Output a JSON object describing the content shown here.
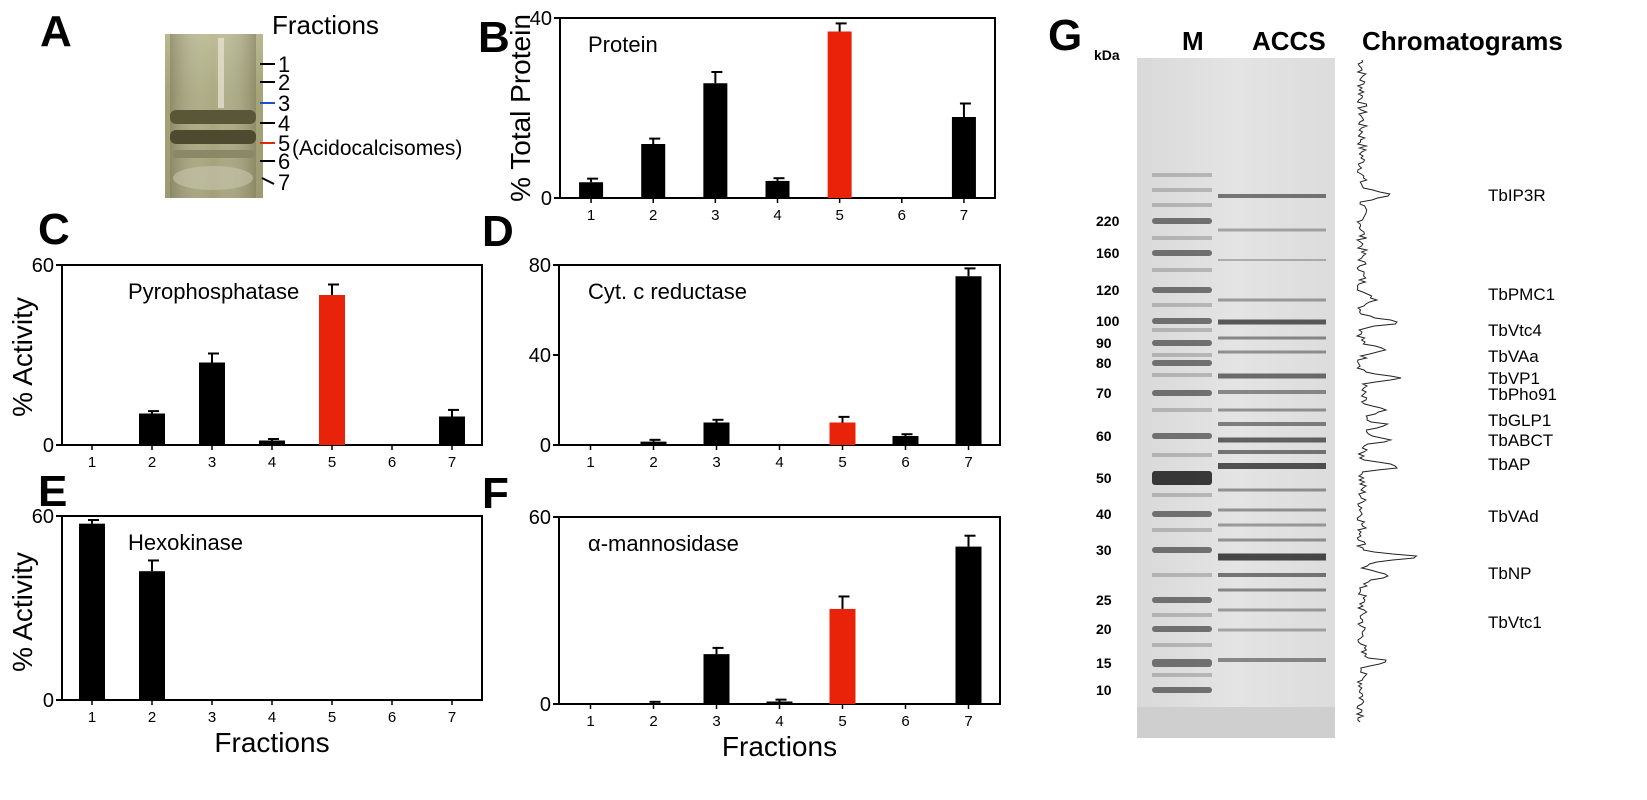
{
  "panel_a": {
    "letter": "A",
    "title": "Fractions",
    "fraction_labels": [
      "1",
      "2",
      "3",
      "4",
      "5",
      "6",
      "7"
    ],
    "annotation": "(Acidocalcisomes)",
    "colors": {
      "marker3": "#1f4fcf",
      "marker5": "#e02a0a"
    }
  },
  "colors": {
    "highlight": "#e8230a",
    "default_bar": "#000000"
  },
  "chart_data": [
    {
      "panel": "B",
      "type": "bar",
      "title": "Protein",
      "xlabel": "",
      "ylabel": "% Total Protein",
      "categories": [
        "1",
        "2",
        "3",
        "4",
        "5",
        "6",
        "7"
      ],
      "values": [
        3.5,
        12,
        25.5,
        3.8,
        37,
        0,
        18
      ],
      "errors": [
        0.8,
        1.2,
        2.5,
        0.6,
        1.8,
        0,
        3
      ],
      "highlight_index": 4,
      "ylim": [
        0,
        40
      ],
      "yticks": [
        "0",
        "40"
      ]
    },
    {
      "panel": "C",
      "type": "bar",
      "title": "Pyrophosphatase",
      "xlabel": "",
      "ylabel": "% Activity",
      "categories": [
        "1",
        "2",
        "3",
        "4",
        "5",
        "6",
        "7"
      ],
      "values": [
        0,
        10.5,
        27.5,
        1.5,
        50,
        0,
        9.5
      ],
      "errors": [
        0,
        0.8,
        3,
        0.5,
        3.5,
        0,
        2.2
      ],
      "highlight_index": 4,
      "ylim": [
        0,
        60
      ],
      "yticks": [
        "0",
        "60"
      ]
    },
    {
      "panel": "D",
      "type": "bar",
      "title": "Cyt. c reductase",
      "xlabel": "",
      "ylabel": "",
      "categories": [
        "1",
        "2",
        "3",
        "4",
        "5",
        "6",
        "7"
      ],
      "values": [
        0,
        1.5,
        10,
        0,
        10,
        4,
        75
      ],
      "errors": [
        0,
        0.8,
        1.2,
        0,
        2.5,
        0.8,
        3.5
      ],
      "highlight_index": 4,
      "ylim": [
        0,
        80
      ],
      "yticks": [
        "0",
        "40",
        "80"
      ]
    },
    {
      "panel": "E",
      "type": "bar",
      "title": "Hexokinase",
      "xlabel": "Fractions",
      "ylabel": "% Activity",
      "categories": [
        "1",
        "2",
        "3",
        "4",
        "5",
        "6",
        "7"
      ],
      "values": [
        57.5,
        42,
        0,
        0,
        0,
        0,
        0
      ],
      "errors": [
        1.2,
        3.5,
        0,
        0,
        0,
        0,
        0
      ],
      "highlight_index": -1,
      "ylim": [
        0,
        60
      ],
      "yticks": [
        "0",
        "60"
      ]
    },
    {
      "panel": "F",
      "type": "bar",
      "title": "α-mannosidase",
      "xlabel": "Fractions",
      "ylabel": "",
      "categories": [
        "1",
        "2",
        "3",
        "4",
        "5",
        "6",
        "7"
      ],
      "values": [
        0,
        0.3,
        16,
        0.8,
        30.5,
        0,
        50.5
      ],
      "errors": [
        0,
        0.4,
        2,
        0.6,
        4,
        0,
        3.5
      ],
      "highlight_index": 4,
      "ylim": [
        0,
        60
      ],
      "yticks": [
        "0",
        "60"
      ]
    }
  ],
  "panel_g": {
    "letter": "G",
    "lane_labels": [
      "M",
      "ACCS"
    ],
    "kda_label": "kDa",
    "chromatogram_label": "Chromatograms",
    "markers_kda": [
      "220",
      "160",
      "120",
      "100",
      "90",
      "80",
      "70",
      "60",
      "50",
      "40",
      "30",
      "25",
      "20",
      "15",
      "10"
    ],
    "proteins": [
      "TbIP3R",
      "TbPMC1",
      "TbVtc4",
      "TbVAa",
      "TbVP1",
      "TbPho91",
      "TbGLP1",
      "TbABCT",
      "TbAP",
      "TbVAd",
      "TbNP",
      "TbVtc1"
    ]
  }
}
